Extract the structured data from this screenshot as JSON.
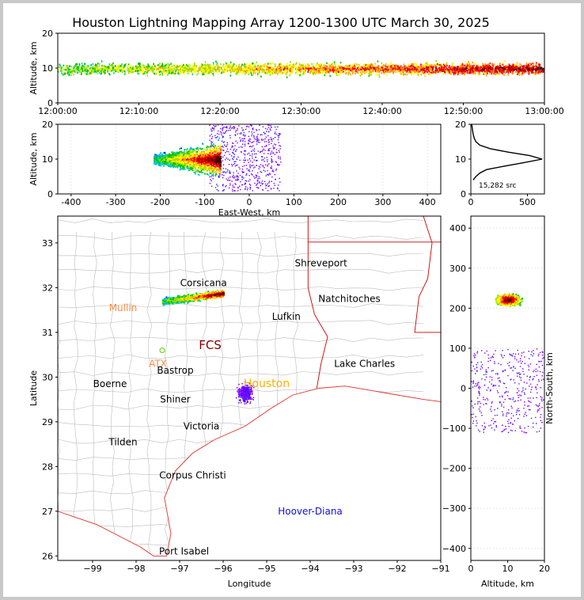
{
  "title": "Houston Lightning Mapping Array 1200-1300 UTC March 30, 2025",
  "colors": {
    "background": "#ffffff",
    "outer": "#c8c8c8",
    "county": "#bdbdbd",
    "state": "#cc0000",
    "coast": "#e03030"
  },
  "chart_data": [
    {
      "type": "scatter",
      "panel": "time-altitude",
      "ylabel": "Altitude, km",
      "xlabel": "",
      "ylim": [
        0,
        20
      ],
      "yticks": [
        0,
        10,
        20
      ],
      "x_ticklabels": [
        "12:00:00",
        "12:10:00",
        "12:20:00",
        "12:30:00",
        "12:40:00",
        "12:50:00",
        "13:00:00"
      ],
      "description_of_data": {
        "altitude_band_km": [
          5,
          15
        ],
        "peak_altitude_km": 10
      }
    },
    {
      "type": "scatter",
      "panel": "east-west-altitude",
      "xlabel": "East-West, km",
      "ylabel": "Altitude, km",
      "xlim": [
        -430,
        430
      ],
      "ylim": [
        0,
        20
      ],
      "xticks": [
        -400,
        -300,
        -200,
        -100,
        0,
        100,
        200,
        300,
        400
      ],
      "yticks": [
        0,
        10,
        20
      ],
      "clusters": [
        {
          "x_range_km": [
            -215,
            -65
          ],
          "alt_range_km": [
            4,
            17
          ],
          "density": "high"
        },
        {
          "x_range_km": [
            -90,
            70
          ],
          "alt_range_km": [
            1,
            20
          ],
          "density": "sparse"
        }
      ]
    },
    {
      "type": "line",
      "panel": "altitude-histogram",
      "xlim": [
        0,
        650
      ],
      "ylim": [
        0,
        20
      ],
      "xticks": [
        0,
        500
      ],
      "yticks": [
        0,
        10,
        20
      ],
      "annotation": "15,282 src",
      "profile": [
        [
          4,
          20
        ],
        [
          5,
          45
        ],
        [
          6,
          80
        ],
        [
          7,
          140
        ],
        [
          8,
          300
        ],
        [
          9,
          470
        ],
        [
          10,
          630
        ],
        [
          11,
          520
        ],
        [
          12,
          330
        ],
        [
          13,
          170
        ],
        [
          14,
          80
        ],
        [
          15,
          45
        ],
        [
          16,
          30
        ],
        [
          17,
          22
        ],
        [
          18,
          16
        ],
        [
          19,
          12
        ],
        [
          20,
          8
        ]
      ]
    },
    {
      "type": "map",
      "panel": "plan-view",
      "xlabel": "Longitude",
      "ylabel": "Latitude",
      "xlim": [
        -99.8,
        -91
      ],
      "ylim": [
        25.9,
        33.6
      ],
      "xticks": [
        -99,
        -98,
        -97,
        -96,
        -95,
        -94,
        -93,
        -92,
        -91
      ],
      "yticks": [
        26,
        27,
        28,
        29,
        30,
        31,
        32,
        33
      ],
      "places": [
        {
          "name": "Shreveport",
          "lon": -93.75,
          "lat": 32.55,
          "color": "#000000"
        },
        {
          "name": "Corsicana",
          "lon": -96.45,
          "lat": 32.1,
          "color": "#000000"
        },
        {
          "name": "Natchitoches",
          "lon": -93.1,
          "lat": 31.75,
          "color": "#000000"
        },
        {
          "name": "Mullin",
          "lon": -98.3,
          "lat": 31.55,
          "color": "#ff8c40"
        },
        {
          "name": "Lufkin",
          "lon": -94.55,
          "lat": 31.35,
          "color": "#000000"
        },
        {
          "name": "FCS",
          "lon": -96.3,
          "lat": 30.7,
          "color": "#800000"
        },
        {
          "name": "ATX",
          "lon": -97.5,
          "lat": 30.3,
          "color": "#ff8c40"
        },
        {
          "name": "Bastrop",
          "lon": -97.1,
          "lat": 30.15,
          "color": "#000000"
        },
        {
          "name": "Lake Charles",
          "lon": -92.75,
          "lat": 30.3,
          "color": "#000000"
        },
        {
          "name": "Boerne",
          "lon": -98.6,
          "lat": 29.85,
          "color": "#000000"
        },
        {
          "name": "Houston",
          "lon": -95.0,
          "lat": 29.85,
          "color": "#ffb000"
        },
        {
          "name": "Shiner",
          "lon": -97.1,
          "lat": 29.5,
          "color": "#000000"
        },
        {
          "name": "Victoria",
          "lon": -96.5,
          "lat": 28.9,
          "color": "#000000"
        },
        {
          "name": "Tilden",
          "lon": -98.3,
          "lat": 28.55,
          "color": "#000000"
        },
        {
          "name": "Corpus Christi",
          "lon": -96.7,
          "lat": 27.8,
          "color": "#000000"
        },
        {
          "name": "Hoover-Diana",
          "lon": -94.0,
          "lat": 27.0,
          "color": "#1010e0"
        },
        {
          "name": "Port Isabel",
          "lon": -96.9,
          "lat": 26.1,
          "color": "#000000"
        }
      ],
      "clusters": [
        {
          "lon_range": [
            -97.4,
            -96.0
          ],
          "lat_range": [
            31.6,
            31.95
          ],
          "density": "high"
        },
        {
          "lon_range": [
            -95.9,
            -95.1
          ],
          "lat_range": [
            29.2,
            30.1
          ],
          "density": "sparse"
        }
      ]
    },
    {
      "type": "scatter",
      "panel": "altitude-north-south",
      "xlabel": "Altitude, km",
      "ylabel": "North-South, km",
      "xlim": [
        0,
        20
      ],
      "ylim": [
        -430,
        430
      ],
      "xticks": [
        0,
        10,
        20
      ],
      "yticks": [
        -400,
        -300,
        -200,
        -100,
        0,
        100,
        200,
        300,
        400
      ],
      "clusters": [
        {
          "alt_range_km": [
            4,
            20
          ],
          "ns_range_km": [
            195,
            250
          ],
          "density": "high"
        },
        {
          "alt_range_km": [
            0,
            20
          ],
          "ns_range_km": [
            -110,
            100
          ],
          "density": "sparse"
        }
      ]
    }
  ]
}
